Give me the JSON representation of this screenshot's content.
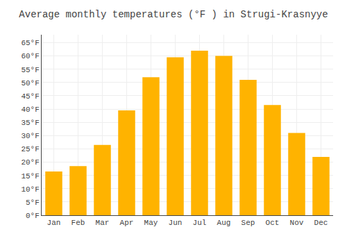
{
  "chart_data": {
    "type": "bar",
    "title": "Average monthly temperatures (°F ) in Strugi-Krasnyye",
    "categories": [
      "Jan",
      "Feb",
      "Mar",
      "Apr",
      "May",
      "Jun",
      "Jul",
      "Aug",
      "Sep",
      "Oct",
      "Nov",
      "Dec"
    ],
    "values": [
      16.5,
      18.5,
      26.5,
      39.5,
      52,
      59.5,
      62,
      60,
      51,
      41.5,
      31,
      22
    ],
    "color": "#FFB300",
    "ylim": [
      0,
      68
    ],
    "yticks": [
      {
        "value": 0,
        "label": "0°F"
      },
      {
        "value": 5,
        "label": "5°F"
      },
      {
        "value": 10,
        "label": "10°F"
      },
      {
        "value": 15,
        "label": "15°F"
      },
      {
        "value": 20,
        "label": "20°F"
      },
      {
        "value": 25,
        "label": "25°F"
      },
      {
        "value": 30,
        "label": "30°F"
      },
      {
        "value": 35,
        "label": "35°F"
      },
      {
        "value": 40,
        "label": "40°F"
      },
      {
        "value": 45,
        "label": "45°F"
      },
      {
        "value": 50,
        "label": "50°F"
      },
      {
        "value": 55,
        "label": "55°F"
      },
      {
        "value": 60,
        "label": "60°F"
      },
      {
        "value": 65,
        "label": "65°F"
      }
    ],
    "grid": true
  }
}
